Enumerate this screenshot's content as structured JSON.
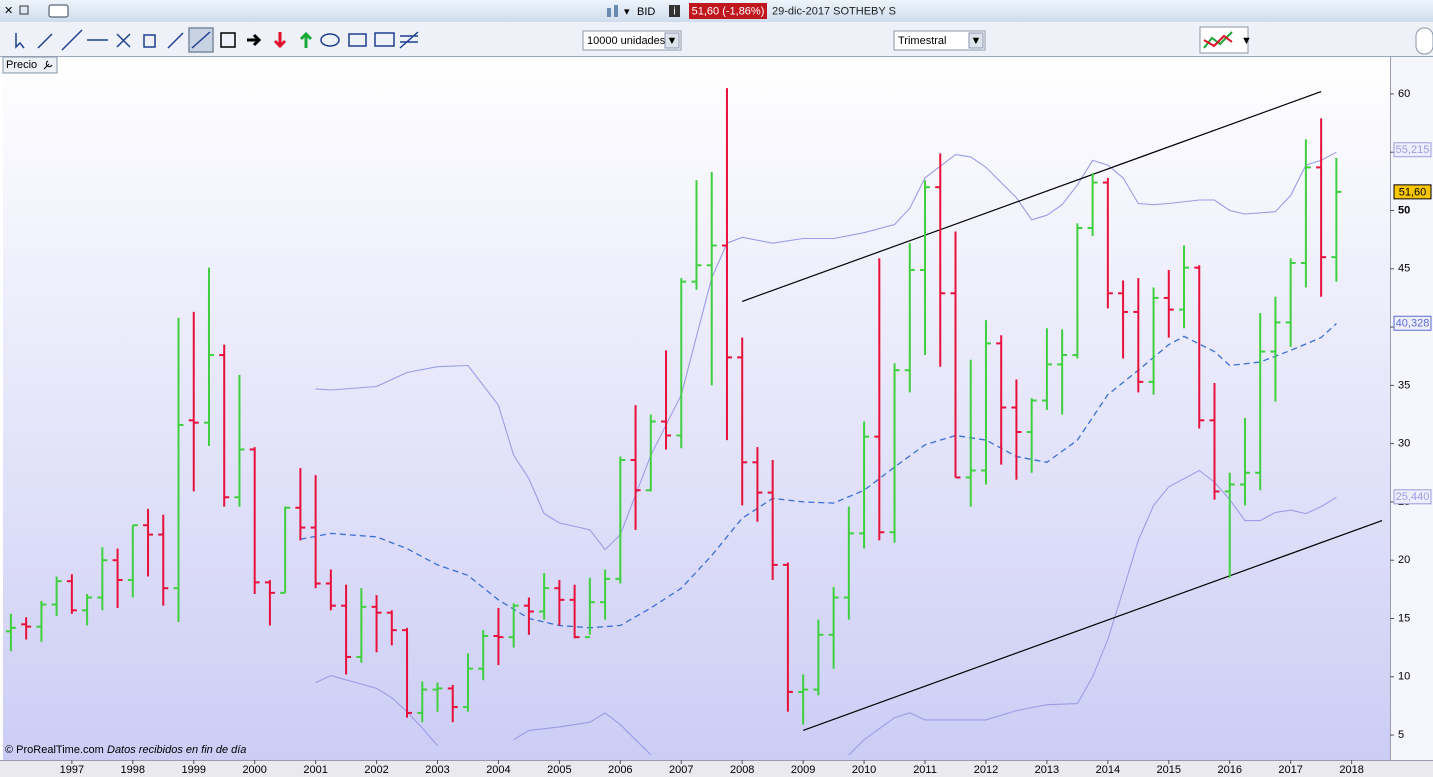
{
  "titlebar": {
    "feed": "BID",
    "quote": "51,60 (-1,86%)",
    "caption": "29-dic-2017 SOTHEBY S"
  },
  "toolbar": {
    "units": "10000 unidades",
    "period": "Trimestral"
  },
  "panel_label": "Precio",
  "footer": {
    "copyright": "© ProRealTime.com",
    "note": "Datos recibidos en fin de día"
  },
  "chart_data": {
    "type": "ohlc",
    "up_color": "#3fcf3f",
    "down_color": "#e8103a",
    "xlim": [
      1995.87,
      2018.63
    ],
    "xticks": [
      1997,
      1998,
      1999,
      2000,
      2001,
      2002,
      2003,
      2004,
      2005,
      2006,
      2007,
      2008,
      2009,
      2010,
      2011,
      2012,
      2013,
      2014,
      2015,
      2016,
      2017,
      2018
    ],
    "ylim": [
      2.86,
      63.17
    ],
    "yticks": [
      5,
      10,
      15,
      20,
      25,
      30,
      35,
      40,
      45,
      50,
      55,
      60
    ],
    "x": [
      1996,
      1996.25,
      1996.5,
      1996.75,
      1997,
      1997.25,
      1997.5,
      1997.75,
      1998,
      1998.25,
      1998.5,
      1998.75,
      1999,
      1999.25,
      1999.5,
      1999.75,
      2000,
      2000.25,
      2000.5,
      2000.75,
      2001,
      2001.25,
      2001.5,
      2001.75,
      2002,
      2002.25,
      2002.5,
      2002.75,
      2003,
      2003.25,
      2003.5,
      2003.75,
      2004,
      2004.25,
      2004.5,
      2004.75,
      2005,
      2005.25,
      2005.5,
      2005.75,
      2006,
      2006.25,
      2006.5,
      2006.75,
      2007,
      2007.25,
      2007.5,
      2007.75,
      2008,
      2008.25,
      2008.5,
      2008.75,
      2009,
      2009.25,
      2009.5,
      2009.75,
      2010,
      2010.25,
      2010.5,
      2010.75,
      2011,
      2011.25,
      2011.5,
      2011.75,
      2012,
      2012.25,
      2012.5,
      2012.75,
      2013,
      2013.25,
      2013.5,
      2013.75,
      2014,
      2014.25,
      2014.5,
      2014.75,
      2015,
      2015.25,
      2015.5,
      2015.75,
      2016,
      2016.25,
      2016.5,
      2016.75,
      2017,
      2017.25,
      2017.5,
      2017.75
    ],
    "open": [
      13.9,
      14.5,
      14.3,
      16.2,
      18.2,
      15.7,
      16.8,
      20.0,
      18.3,
      23.0,
      22.2,
      17.6,
      32.0,
      31.8,
      37.6,
      25.4,
      29.5,
      18.1,
      17.2,
      24.5,
      22.8,
      18.0,
      16.1,
      11.7,
      16.0,
      15.5,
      14.0,
      6.9,
      8.9,
      9.0,
      7.4,
      10.7,
      13.5,
      13.4,
      16.1,
      15.6,
      17.6,
      16.6,
      13.4,
      16.4,
      18.4,
      28.6,
      26.0,
      31.9,
      30.7,
      43.9,
      45.3,
      47.0,
      37.4,
      28.4,
      25.8,
      19.6,
      8.7,
      8.9,
      13.6,
      16.8,
      22.3,
      30.6,
      22.4,
      36.3,
      44.9,
      52.0,
      42.9,
      27.1,
      27.7,
      38.6,
      33.1,
      31.0,
      33.7,
      36.8,
      37.6,
      48.5,
      52.4,
      42.9,
      41.3,
      35.3,
      42.5,
      41.5,
      45.1,
      32.0,
      25.9,
      26.5,
      27.5,
      37.9,
      40.4,
      45.5,
      53.7,
      46.0
    ],
    "high": [
      15.4,
      15.1,
      16.5,
      18.6,
      18.8,
      17.1,
      21.1,
      21.0,
      23.0,
      24.4,
      23.9,
      40.8,
      41.3,
      45.1,
      38.5,
      35.9,
      29.7,
      18.3,
      24.6,
      27.9,
      27.3,
      19.2,
      17.9,
      17.6,
      17.0,
      15.7,
      14.2,
      9.6,
      9.5,
      9.3,
      12.0,
      14.0,
      15.9,
      16.3,
      16.8,
      18.9,
      18.3,
      17.9,
      18.5,
      19.2,
      28.9,
      33.3,
      32.5,
      38.0,
      44.2,
      52.6,
      53.3,
      60.5,
      39.1,
      29.7,
      28.6,
      19.8,
      10.2,
      14.9,
      17.7,
      24.6,
      31.9,
      45.9,
      36.9,
      47.2,
      52.6,
      54.9,
      48.2,
      37.2,
      40.6,
      39.3,
      35.5,
      33.9,
      39.9,
      39.8,
      48.9,
      53.2,
      52.8,
      44.0,
      44.2,
      43.4,
      44.9,
      47.0,
      45.3,
      35.2,
      27.5,
      32.2,
      41.2,
      42.6,
      45.9,
      56.1,
      57.9,
      54.5
    ],
    "low": [
      12.2,
      13.2,
      13.0,
      15.2,
      15.4,
      14.4,
      15.7,
      15.9,
      16.8,
      18.6,
      16.1,
      14.7,
      25.9,
      29.8,
      24.6,
      24.6,
      17.1,
      14.4,
      17.2,
      21.7,
      17.6,
      15.7,
      10.2,
      11.2,
      12.1,
      12.7,
      6.5,
      6.1,
      7.0,
      6.1,
      7.0,
      9.7,
      11.0,
      12.5,
      13.6,
      14.9,
      14.4,
      13.3,
      13.6,
      14.9,
      18.0,
      22.6,
      25.9,
      29.5,
      29.6,
      43.2,
      35.0,
      30.3,
      24.7,
      23.3,
      18.3,
      7.0,
      5.9,
      8.4,
      10.7,
      14.9,
      21.0,
      21.7,
      21.5,
      34.4,
      37.6,
      36.6,
      27.1,
      24.6,
      26.5,
      28.2,
      26.9,
      27.5,
      32.9,
      32.5,
      37.3,
      47.8,
      41.6,
      37.3,
      34.4,
      34.2,
      39.1,
      39.9,
      31.3,
      25.2,
      18.5,
      24.7,
      26.0,
      33.6,
      38.3,
      43.4,
      42.6,
      43.9
    ],
    "close": [
      14.2,
      14.3,
      16.2,
      18.2,
      15.7,
      16.8,
      20.0,
      18.3,
      23.0,
      22.2,
      17.6,
      31.6,
      31.8,
      37.6,
      25.4,
      29.5,
      18.1,
      17.2,
      24.5,
      22.8,
      18.0,
      16.1,
      11.7,
      16.0,
      15.5,
      14.0,
      6.9,
      8.9,
      9.0,
      7.4,
      10.7,
      13.5,
      13.4,
      16.1,
      15.6,
      17.6,
      16.6,
      13.4,
      16.4,
      18.4,
      28.6,
      26.0,
      31.9,
      30.7,
      43.9,
      45.3,
      47.0,
      37.4,
      28.4,
      25.8,
      19.6,
      8.7,
      8.9,
      13.6,
      16.8,
      22.3,
      30.6,
      22.4,
      36.3,
      44.9,
      52.0,
      42.9,
      27.1,
      27.7,
      38.6,
      33.1,
      31.0,
      33.7,
      36.8,
      37.6,
      48.5,
      52.4,
      42.9,
      41.3,
      35.3,
      42.5,
      41.5,
      45.1,
      32.0,
      25.9,
      26.5,
      27.5,
      37.9,
      40.4,
      45.5,
      53.7,
      46.0,
      51.6
    ],
    "overlays": [
      {
        "color": "#3b6fd8",
        "dashed": true,
        "x": [
          2000.75,
          2001.25,
          2002,
          2002.5,
          2003,
          2003.5,
          2004,
          2004.5,
          2005,
          2005.5,
          2006,
          2006.5,
          2007,
          2007.5,
          2008,
          2008.5,
          2009,
          2009.5,
          2010,
          2010.5,
          2011,
          2011.5,
          2012,
          2012.5,
          2013,
          2013.5,
          2014,
          2014.5,
          2015,
          2015.25,
          2015.75,
          2016,
          2016.5,
          2017,
          2017.5,
          2017.75
        ],
        "values": [
          21.8,
          22.3,
          22.0,
          21.0,
          19.6,
          18.7,
          16.6,
          15.0,
          14.4,
          14.2,
          14.4,
          15.9,
          17.6,
          20.4,
          23.6,
          25.3,
          25.0,
          24.9,
          26.0,
          28.0,
          29.9,
          30.7,
          30.3,
          28.9,
          28.4,
          30.3,
          34.2,
          36.3,
          38.5,
          39.2,
          37.9,
          36.7,
          37.0,
          38.0,
          39.1,
          40.3
        ]
      },
      {
        "color": "#9c9ce6",
        "dashed": false,
        "x": [
          2001,
          2001.25,
          2002,
          2002.5,
          2003,
          2003.5,
          2004,
          2004.25,
          2004.5,
          2004.75,
          2005,
          2005.5,
          2005.75,
          2006,
          2006.5,
          2007,
          2007.5,
          2007.75,
          2008,
          2008.5,
          2009,
          2009.5,
          2010,
          2010.5,
          2010.75,
          2011,
          2011.5,
          2011.75,
          2012,
          2012.5,
          2012.75,
          2013,
          2013.25,
          2013.5,
          2013.75,
          2014,
          2014.25,
          2014.5,
          2014.75,
          2015,
          2015.5,
          2015.75,
          2016,
          2016.25,
          2016.75,
          2017,
          2017.25,
          2017.5,
          2017.75
        ],
        "values": [
          34.7,
          34.6,
          34.9,
          36.1,
          36.6,
          36.7,
          33.3,
          29.0,
          27.0,
          24.0,
          23.2,
          22.6,
          20.9,
          22.2,
          29.0,
          34.2,
          44.2,
          47.2,
          47.7,
          47.2,
          47.6,
          47.6,
          48.1,
          48.8,
          50.2,
          52.8,
          54.8,
          54.6,
          53.7,
          51.1,
          49.2,
          49.6,
          50.5,
          52.2,
          54.3,
          53.9,
          52.8,
          50.6,
          50.5,
          50.6,
          50.9,
          50.9,
          50.0,
          49.7,
          49.9,
          51.3,
          53.9,
          54.3,
          55.0
        ]
      },
      {
        "color": "#9c9ce6",
        "dashed": false,
        "x": [
          2001,
          2001.25,
          2002,
          2002.25,
          2002.5,
          2002.75,
          2003,
          null,
          2004.25,
          2004.5,
          2005,
          2005.5,
          2005.75,
          2006,
          2006.5,
          null,
          2009.75,
          2010,
          2010.5,
          2010.75,
          2011,
          2011.5,
          2012,
          2012.5,
          2013,
          2013.5,
          2013.75,
          2014,
          2014.25,
          2014.5,
          2014.75,
          2015,
          2015.5,
          2015.75,
          2016,
          2016.25,
          2016.5,
          2016.75,
          2017,
          2017.25,
          2017.5,
          2017.75
        ],
        "values": [
          9.5,
          10.1,
          9.0,
          8.2,
          7.0,
          5.6,
          4.1,
          null,
          4.6,
          5.4,
          5.7,
          6.1,
          6.9,
          5.9,
          3.3,
          null,
          3.3,
          4.6,
          6.5,
          6.9,
          6.3,
          6.3,
          6.3,
          7.1,
          7.6,
          7.7,
          10.0,
          13.2,
          17.4,
          21.7,
          24.7,
          26.3,
          27.7,
          26.7,
          25.2,
          23.4,
          23.4,
          24.1,
          24.3,
          24.0,
          24.6,
          25.4
        ]
      }
    ],
    "trendlines": [
      {
        "color": "#000000",
        "x": [
          2008,
          2017.5
        ],
        "values": [
          42.2,
          60.2
        ]
      },
      {
        "color": "#000000",
        "x": [
          2009,
          2018.5
        ],
        "values": [
          5.4,
          23.4
        ]
      }
    ],
    "price_labels": [
      {
        "value": 55.215,
        "label": "55,215",
        "color": "#9c9ce6",
        "fill": "#eeeefc"
      },
      {
        "value": 51.6,
        "label": "51,60",
        "color": "#000000",
        "fill": "#f7c600"
      },
      {
        "value": 40.328,
        "label": "40,328",
        "color": "#5a6fd0",
        "fill": "#eeeefc"
      },
      {
        "value": 25.44,
        "label": "25,440",
        "color": "#9c9ce6",
        "fill": "#eeeefc"
      }
    ]
  }
}
